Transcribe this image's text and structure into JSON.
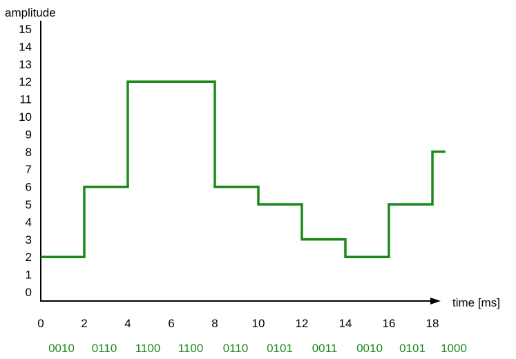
{
  "chart_data": {
    "type": "line",
    "step": true,
    "ylabel": "amplitude",
    "xlabel": "time [ms]",
    "xlim": [
      0,
      18
    ],
    "ylim": [
      0,
      15
    ],
    "x_ticks": [
      "0",
      "2",
      "4",
      "6",
      "8",
      "10",
      "12",
      "14",
      "16",
      "18"
    ],
    "y_ticks": [
      "0",
      "1",
      "2",
      "3",
      "4",
      "5",
      "6",
      "7",
      "8",
      "9",
      "10",
      "11",
      "12",
      "13",
      "14",
      "15"
    ],
    "x": [
      0,
      2,
      4,
      6,
      8,
      10,
      12,
      14,
      16,
      18
    ],
    "values": [
      2,
      6,
      12,
      12,
      6,
      5,
      3,
      2,
      5,
      8
    ],
    "codes": [
      "0010",
      "0110",
      "1100",
      "1100",
      "0110",
      "0101",
      "0011",
      "0010",
      "0101",
      "1000"
    ],
    "line_color": "#1a8a1a",
    "code_color": "#1a8a1a",
    "axis_color": "#000000",
    "grid": false
  }
}
